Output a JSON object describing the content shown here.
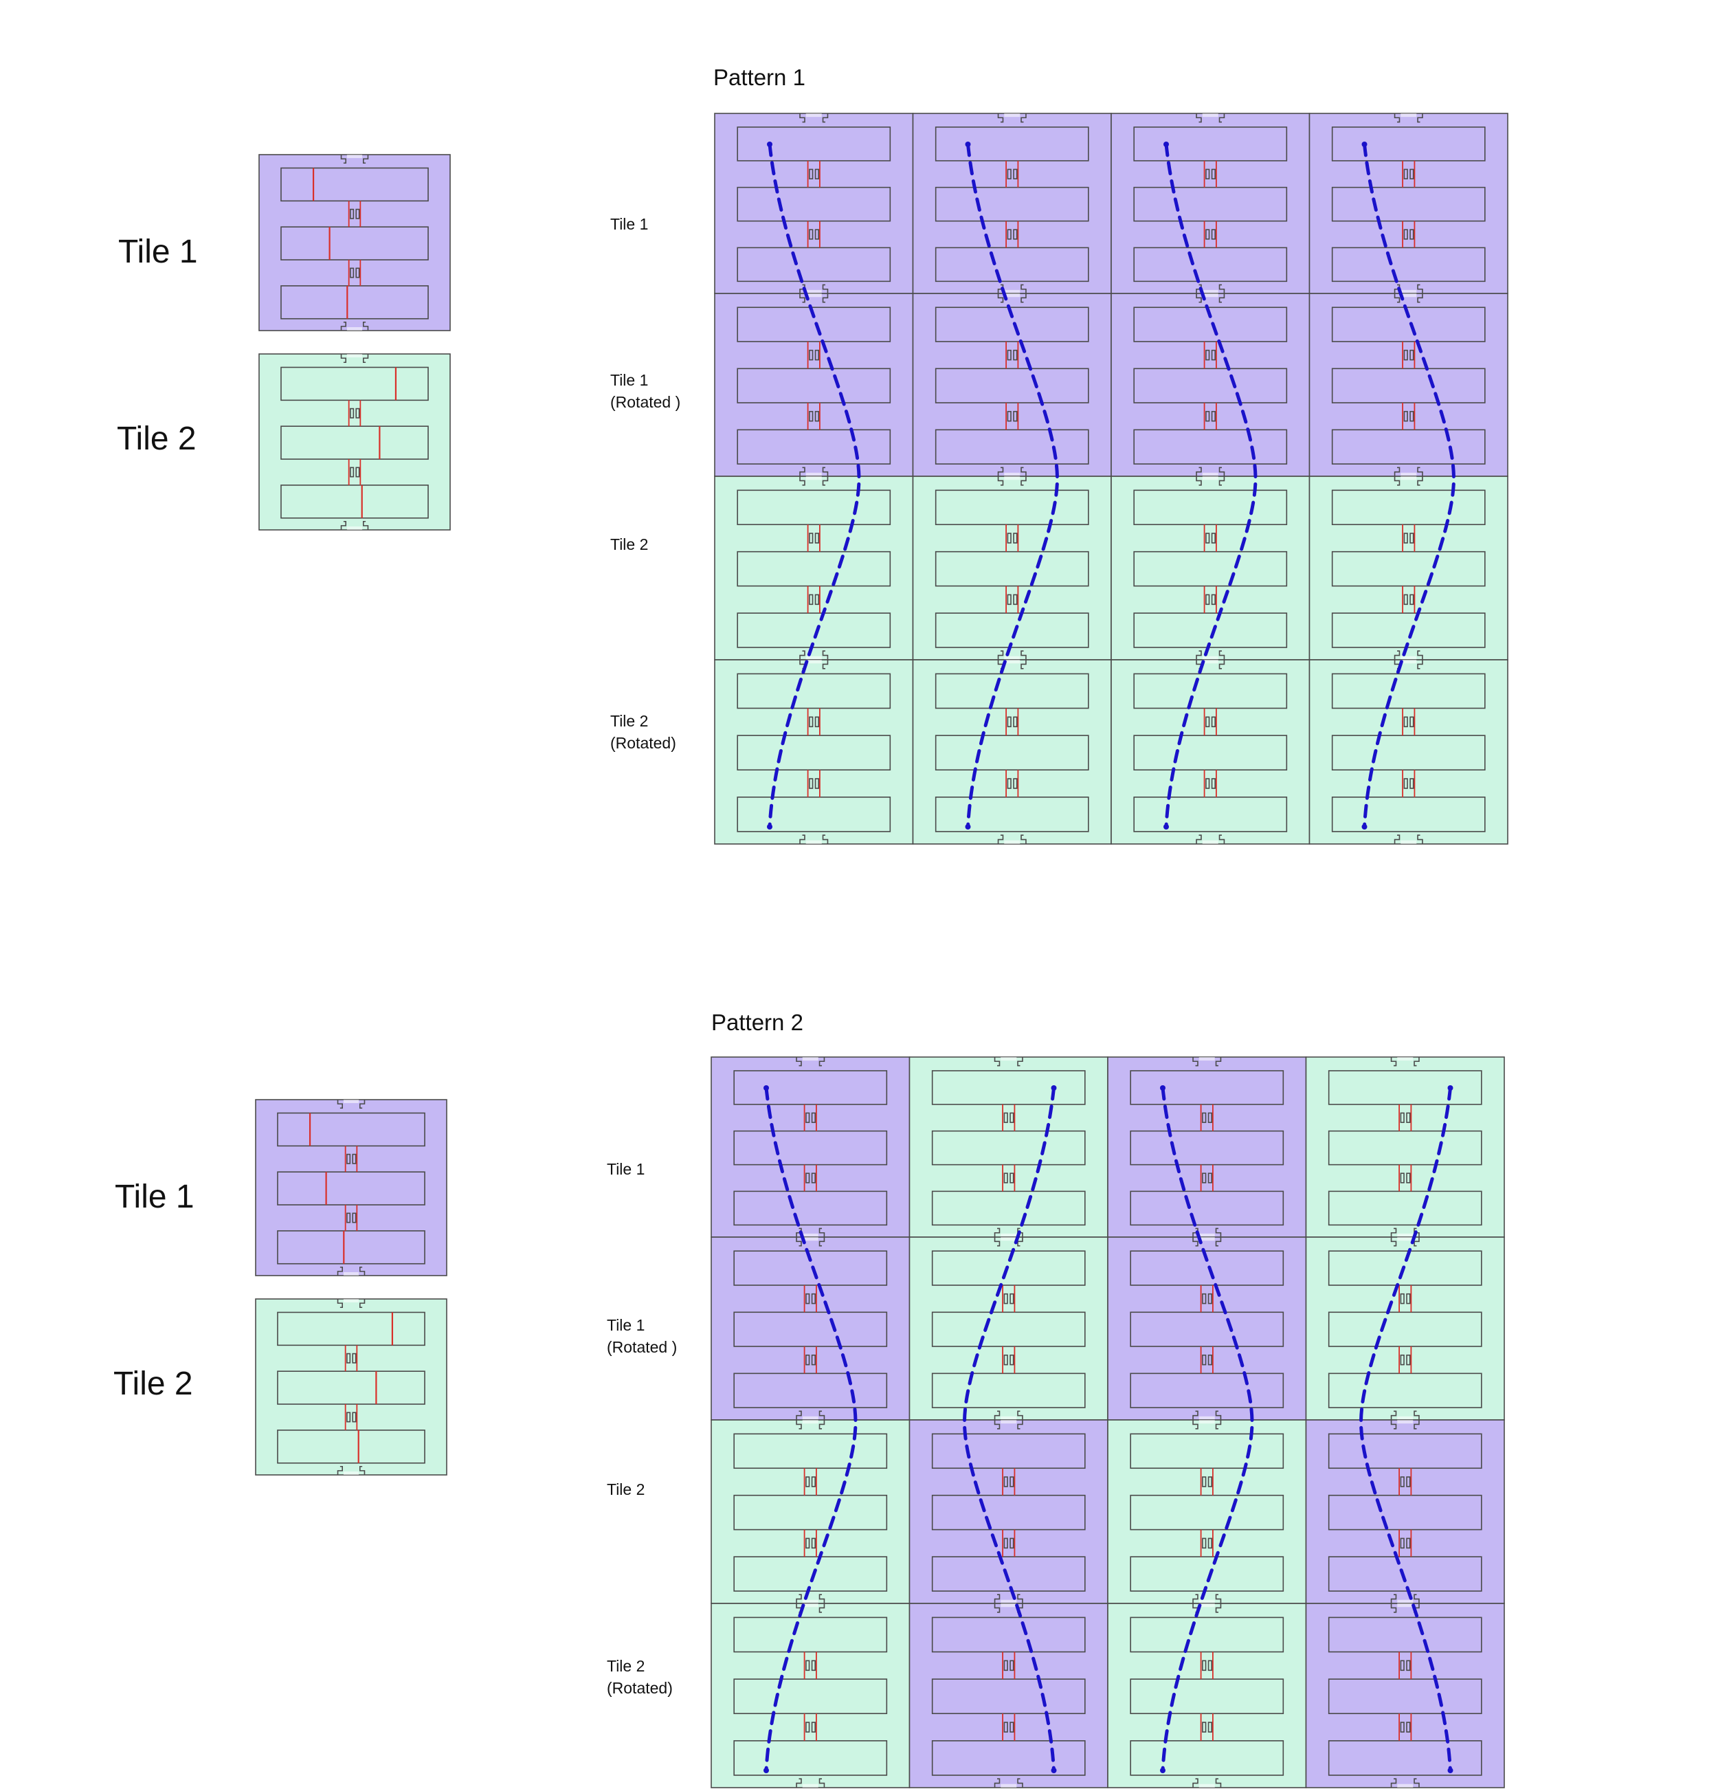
{
  "colors": {
    "tile1_fill": "#c5b8f4",
    "tile2_fill": "#cdf5e3",
    "outline": "#4a4a4a",
    "red_line": "#d9302a",
    "path_line": "#1a12c9"
  },
  "top": {
    "legend": {
      "tile1": "Tile 1",
      "tile2": "Tile 2"
    },
    "pattern": {
      "title": "Pattern 1",
      "row_labels": [
        {
          "line1": "Tile 1",
          "line2": ""
        },
        {
          "line1": "Tile 1",
          "line2": "(Rotated )"
        },
        {
          "line1": "Tile 2",
          "line2": ""
        },
        {
          "line1": "Tile 2",
          "line2": "(Rotated)"
        }
      ],
      "grid": [
        [
          "tile1",
          "tile1",
          "tile1",
          "tile1"
        ],
        [
          "tile1",
          "tile1",
          "tile1",
          "tile1"
        ],
        [
          "tile2",
          "tile2",
          "tile2",
          "tile2"
        ],
        [
          "tile2",
          "tile2",
          "tile2",
          "tile2"
        ]
      ],
      "path_direction": [
        "right",
        "right",
        "right",
        "right"
      ]
    }
  },
  "bottom": {
    "legend": {
      "tile1": "Tile 1",
      "tile2": "Tile 2"
    },
    "pattern": {
      "title": "Pattern 2",
      "row_labels": [
        {
          "line1": "Tile 1",
          "line2": ""
        },
        {
          "line1": "Tile 1",
          "line2": "(Rotated )"
        },
        {
          "line1": "Tile 2",
          "line2": ""
        },
        {
          "line1": "Tile 2",
          "line2": "(Rotated)"
        }
      ],
      "grid": [
        [
          "tile1",
          "tile2",
          "tile1",
          "tile2"
        ],
        [
          "tile1",
          "tile2",
          "tile1",
          "tile2"
        ],
        [
          "tile2",
          "tile1",
          "tile2",
          "tile1"
        ],
        [
          "tile2",
          "tile1",
          "tile2",
          "tile1"
        ]
      ],
      "path_direction": [
        "right",
        "left",
        "right",
        "left"
      ]
    }
  }
}
